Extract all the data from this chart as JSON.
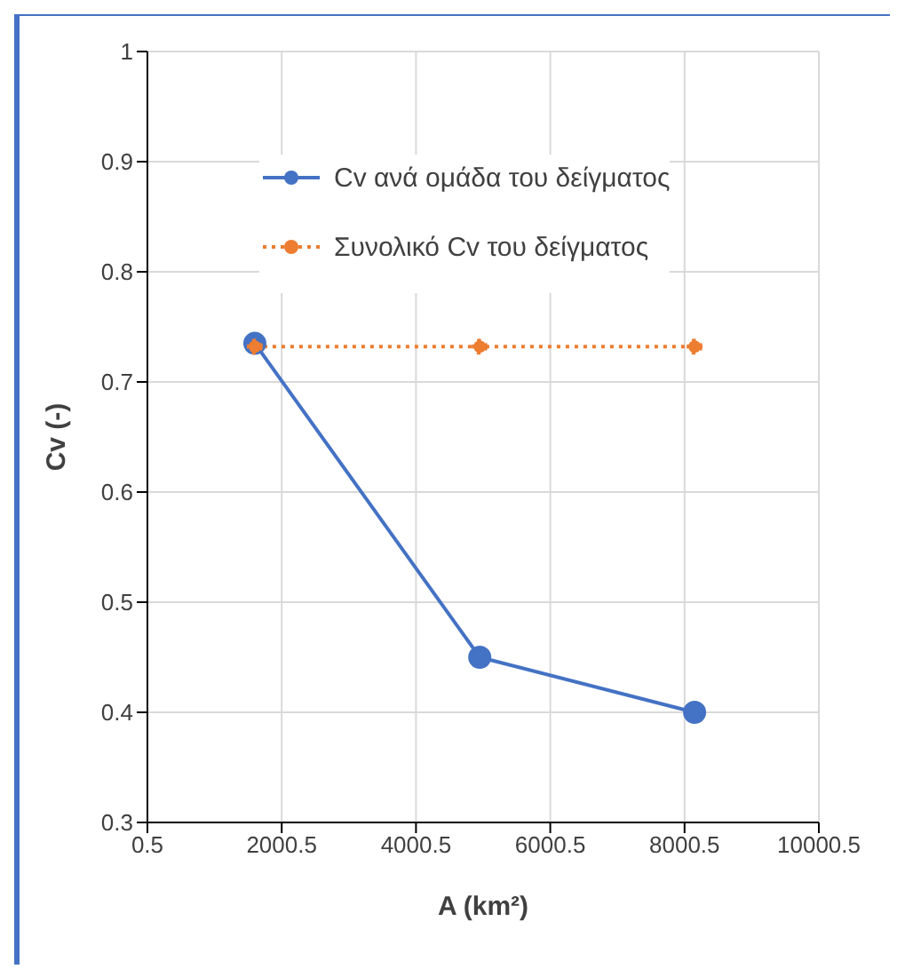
{
  "chart_data": {
    "type": "line",
    "xlabel": "A (km²)",
    "ylabel": "Cv (-)",
    "series": [
      {
        "name": "Cv ανά ομάδα του δείγματος",
        "color": "#4472c4",
        "x": [
          1600,
          4950,
          8150
        ],
        "values": [
          0.735,
          0.45,
          0.4
        ],
        "line_style": "solid"
      },
      {
        "name": "Συνολικό Cv του δείγματος",
        "color": "#ed7d31",
        "x": [
          1600,
          4950,
          8150
        ],
        "values": [
          0.732,
          0.732,
          0.732
        ],
        "line_style": "dotted"
      }
    ],
    "xlim": [
      0.5,
      10000.5
    ],
    "xticks": [
      0.5,
      2000.5,
      4000.5,
      6000.5,
      8000.5,
      10000.5
    ],
    "ylim": [
      0.3,
      1
    ],
    "yticks": [
      0.3,
      0.4,
      0.5,
      0.6,
      0.7,
      0.8,
      0.9,
      1
    ],
    "grid": true,
    "legend": "top right",
    "marker": "circle"
  }
}
